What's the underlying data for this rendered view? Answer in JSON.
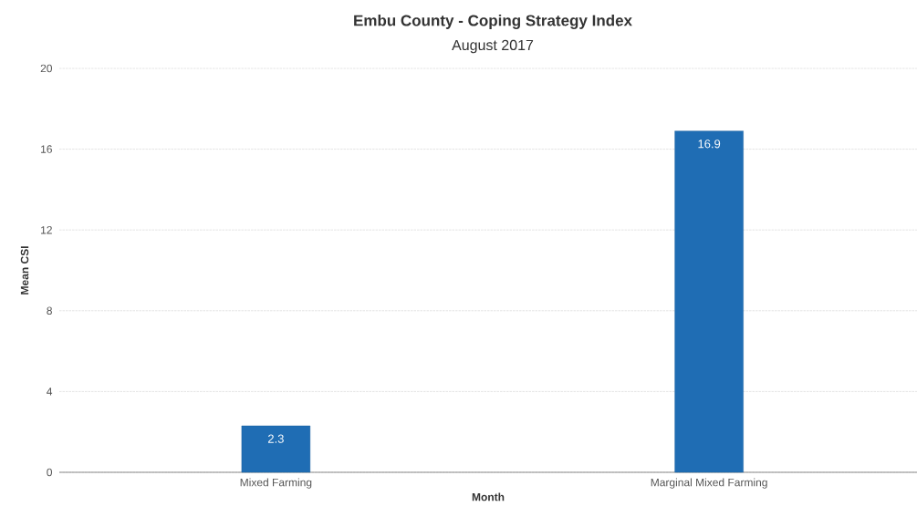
{
  "chart_data": {
    "type": "bar",
    "title": "Embu County - Coping Strategy Index",
    "subtitle": "August 2017",
    "xlabel": "Month",
    "ylabel": "Mean CSI",
    "categories": [
      "Mixed Farming",
      "Marginal Mixed Farming"
    ],
    "values": [
      2.3,
      16.9
    ],
    "color": "#1f6db4",
    "ylim": [
      0,
      20
    ],
    "yticks": [
      0,
      4,
      8,
      12,
      16,
      20
    ],
    "grid": "y",
    "data_labels": true
  }
}
